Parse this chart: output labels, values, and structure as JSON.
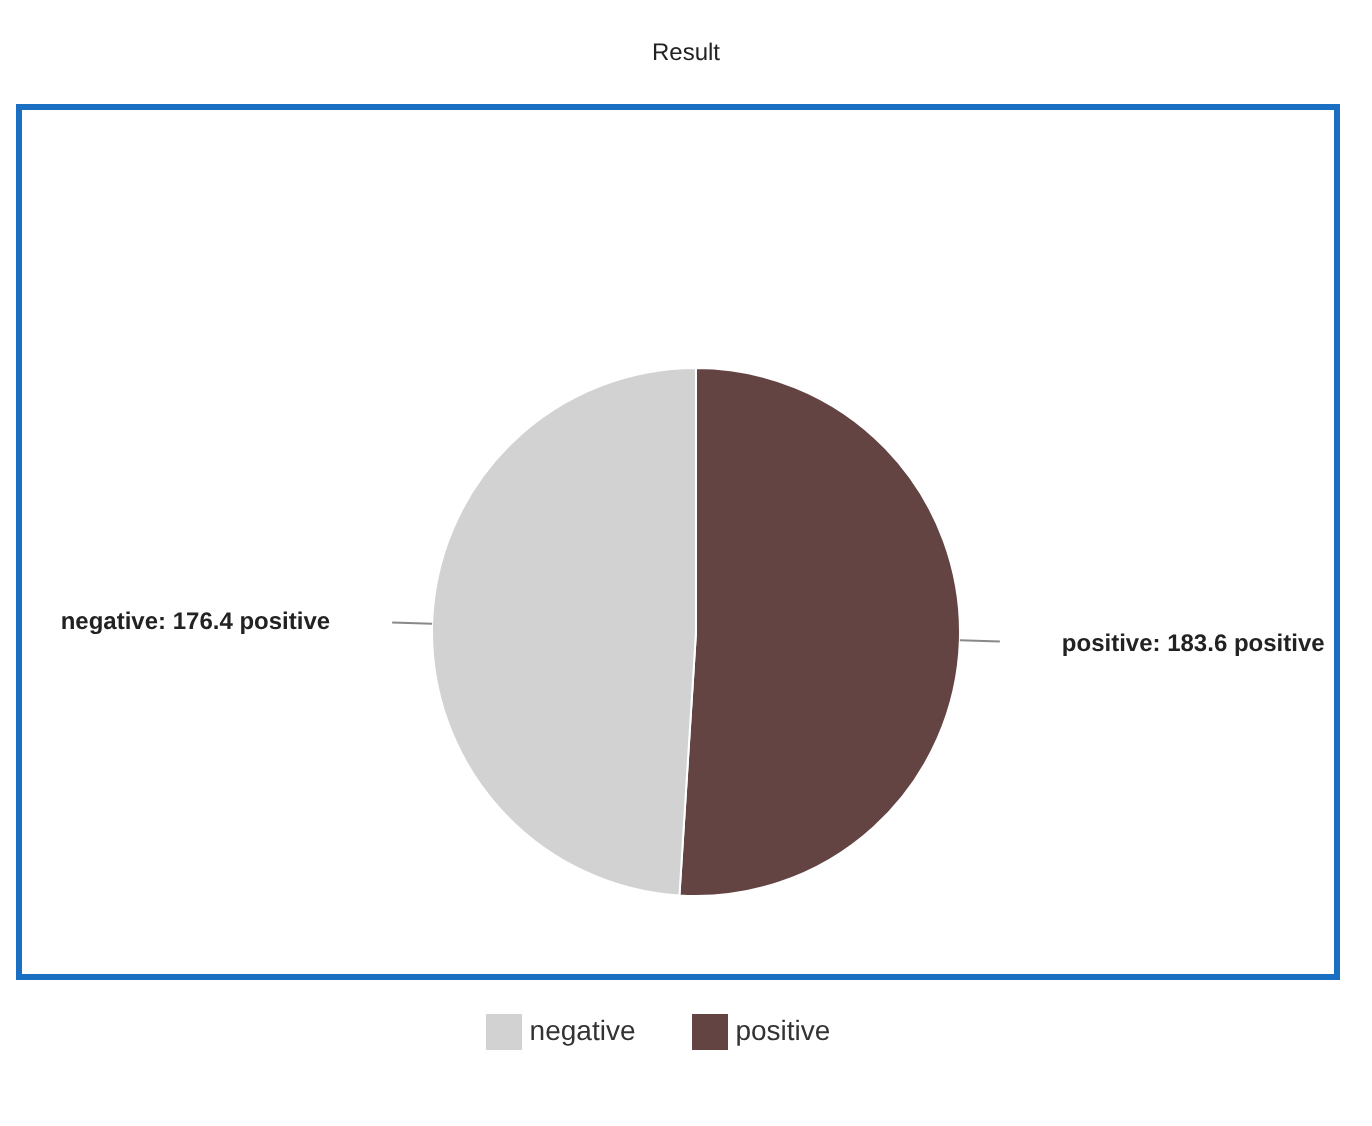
{
  "chart_data": {
    "type": "pie",
    "title": "Result",
    "categories": [
      "positive",
      "negative"
    ],
    "values": [
      183.6,
      176.4
    ],
    "colors": [
      "#634443",
      "#d2d2d2"
    ],
    "value_labels": [
      "positive: 183.6 positive",
      "negative: 176.4 positive"
    ],
    "legend": "bottom"
  }
}
